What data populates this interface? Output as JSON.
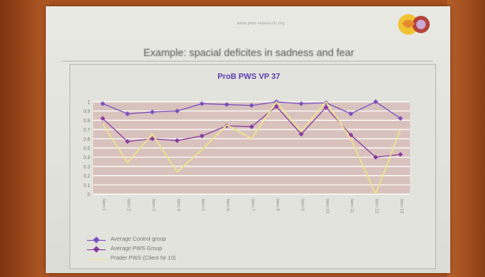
{
  "slide": {
    "title": "Example: spacial deficites in sadness and fear",
    "header_note": "www.pws-research.org"
  },
  "chart_data": {
    "type": "line",
    "title": "ProB PWS VP 37",
    "ylim": [
      0,
      1
    ],
    "y_ticks": [
      "0",
      "0.1",
      "0.2",
      "0.3",
      "0.4",
      "0.5",
      "0.6",
      "0.7",
      "0.8",
      "0.9",
      "1"
    ],
    "categories": [
      "Item 1",
      "Item 2",
      "Item 3",
      "Item 4",
      "Item 5",
      "Item 6",
      "Item 7",
      "Item 8",
      "Item 9",
      "Item 10",
      "Item 11",
      "Item 12",
      "Item 13"
    ],
    "series": [
      {
        "name": "Average Control group",
        "color": "#7a4fc0",
        "values": [
          0.98,
          0.87,
          0.89,
          0.9,
          0.98,
          0.97,
          0.96,
          1.0,
          0.98,
          0.99,
          0.87,
          1.0,
          0.82
        ]
      },
      {
        "name": "Average PWS Group",
        "color": "#8a3aa0",
        "values": [
          0.82,
          0.57,
          0.6,
          0.58,
          0.63,
          0.74,
          0.73,
          0.95,
          0.65,
          0.94,
          0.64,
          0.4,
          0.43
        ]
      },
      {
        "name": "Prader PWS (Client Nr 10)",
        "color": "#f0e58a",
        "values": [
          0.76,
          0.34,
          0.65,
          0.24,
          0.48,
          0.75,
          0.6,
          1.0,
          0.68,
          1.0,
          0.6,
          0.0,
          0.7
        ]
      }
    ]
  },
  "colors": {
    "plot_band": "#d9c2bd",
    "gridline": "#ffffff"
  }
}
